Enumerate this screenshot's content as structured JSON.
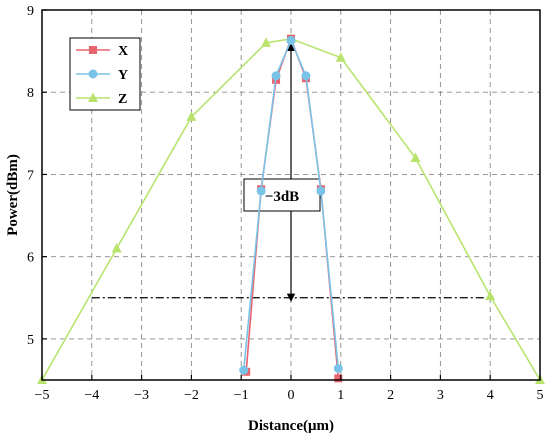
{
  "chart_data": {
    "type": "line",
    "xlabel": "Distance(μm)",
    "ylabel": "Power(dBm)",
    "xlim": [
      -5,
      5
    ],
    "ylim": [
      4.5,
      9
    ],
    "xticks": [
      -5,
      -4,
      -3,
      -2,
      -1,
      0,
      1,
      2,
      3,
      4,
      5
    ],
    "yticks": [
      5,
      6,
      7,
      8,
      9
    ],
    "grid": true,
    "legend_position": "top-left",
    "series": [
      {
        "name": "X",
        "color": "#e8646e",
        "marker": "square",
        "x": [
          -0.9,
          -0.6,
          -0.3,
          0,
          0.3,
          0.6,
          0.95
        ],
        "y": [
          4.6,
          6.82,
          8.15,
          8.65,
          8.17,
          6.82,
          4.52
        ]
      },
      {
        "name": "Y",
        "color": "#7ac3e8",
        "marker": "circle",
        "x": [
          -0.95,
          -0.6,
          -0.3,
          0,
          0.3,
          0.6,
          0.95
        ],
        "y": [
          4.62,
          6.8,
          8.2,
          8.63,
          8.2,
          6.8,
          4.64
        ]
      },
      {
        "name": "Z",
        "color": "#b8e46e",
        "marker": "triangle",
        "x": [
          -5,
          -3.5,
          -2,
          -0.5,
          0,
          1,
          2.5,
          4,
          5
        ],
        "y": [
          4.5,
          6.1,
          7.7,
          8.6,
          8.65,
          8.42,
          7.2,
          5.52,
          4.5
        ]
      }
    ],
    "annotations": {
      "label": "−3dB",
      "arrow_x": 0,
      "arrow_top_y": 8.55,
      "arrow_bottom_y": 5.5,
      "dashed_line_y": 5.5,
      "dashed_line_x": [
        -4,
        4
      ]
    }
  }
}
